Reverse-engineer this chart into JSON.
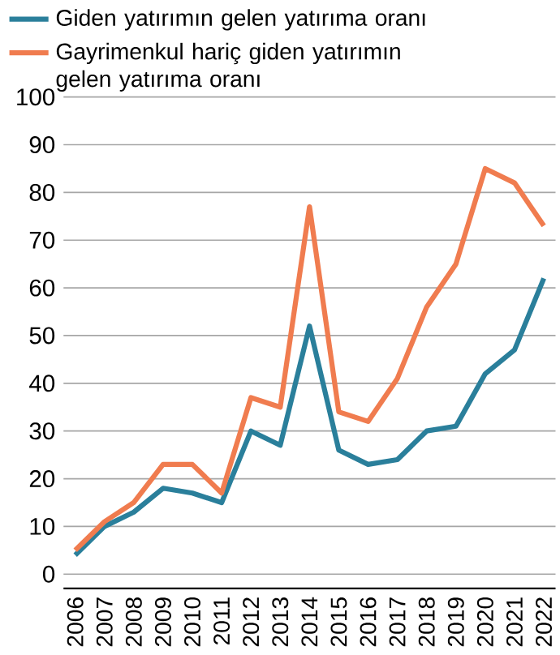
{
  "chart_data": {
    "type": "line",
    "x": [
      2006,
      2007,
      2008,
      2009,
      2010,
      2011,
      2012,
      2013,
      2014,
      2015,
      2016,
      2017,
      2018,
      2019,
      2020,
      2021,
      2022
    ],
    "series": [
      {
        "name": "Giden yatırımın gelen yatırıma oranı",
        "color": "#2a7f9b",
        "values": [
          4,
          10,
          13,
          18,
          17,
          15,
          30,
          27,
          52,
          26,
          23,
          24,
          30,
          31,
          42,
          47,
          62
        ]
      },
      {
        "name": "Gayrimenkul hariç giden yatırımın gelen yatırıma oranı",
        "color": "#f07c4f",
        "values": [
          5,
          11,
          15,
          23,
          23,
          17,
          37,
          35,
          77,
          34,
          32,
          41,
          56,
          65,
          85,
          82,
          73
        ]
      }
    ],
    "xlim": [
      2005.6,
      2022.4
    ],
    "xticks": [
      2006,
      2007,
      2008,
      2009,
      2010,
      2011,
      2012,
      2013,
      2014,
      2015,
      2016,
      2017,
      2018,
      2019,
      2020,
      2021,
      2022
    ],
    "ylim": [
      -3,
      100
    ],
    "yticks": [
      0,
      10,
      20,
      30,
      40,
      50,
      60,
      70,
      80,
      90,
      100
    ],
    "grid": "y",
    "legend": "top left",
    "marker": "none",
    "line_style": "solid"
  }
}
